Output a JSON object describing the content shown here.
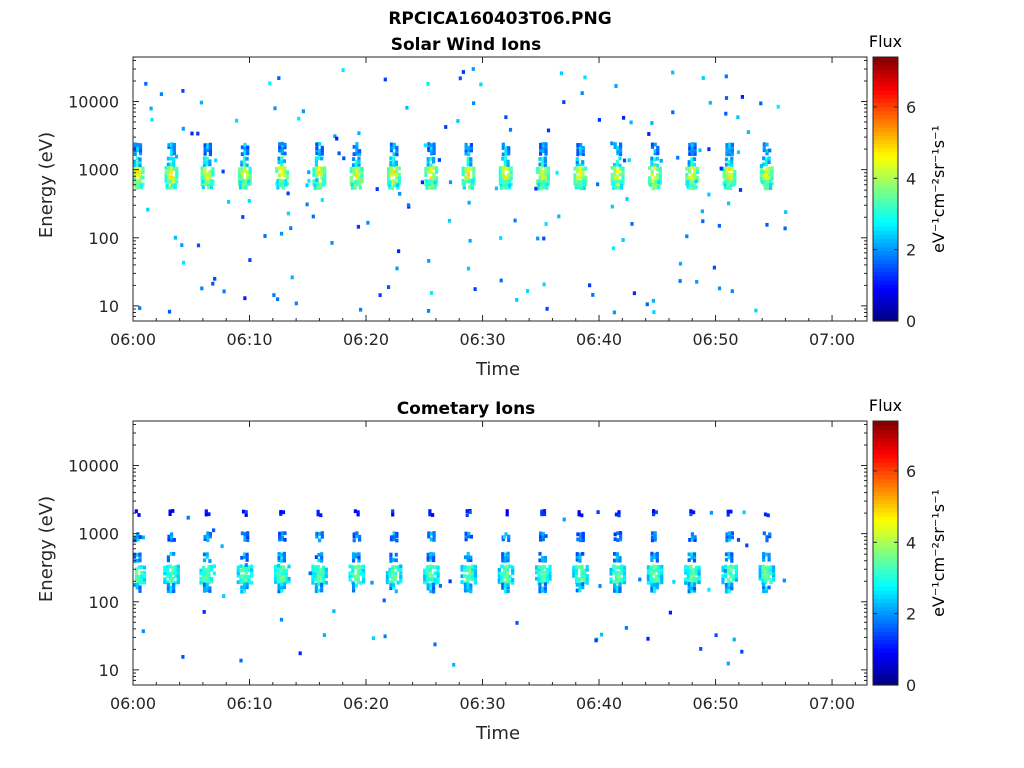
{
  "figure_title": "RPCICA160403T06.PNG",
  "colors": {
    "colormap": "jet",
    "axis": "#262626"
  },
  "chart_data": [
    {
      "type": "heatmap",
      "title": "Solar Wind Ions",
      "xlabel": "Time",
      "ylabel": "Energy (eV)",
      "x_ticks": [
        "06:00",
        "06:10",
        "06:20",
        "06:30",
        "06:40",
        "06:50",
        "07:00"
      ],
      "x_range_minutes": [
        0,
        63
      ],
      "y_scale": "log",
      "y_ticks": [
        "10",
        "100",
        "1000",
        "10000"
      ],
      "y_range": [
        6,
        45000
      ],
      "colorbar": {
        "label": "Flux",
        "unit_label": "eV⁻¹cm⁻²sr⁻¹s⁻¹",
        "ticks": [
          "0",
          "2",
          "4",
          "6"
        ],
        "range": [
          0,
          7.4
        ]
      },
      "sweep_minutes": [
        0.4,
        3.3,
        6.4,
        9.6,
        12.8,
        16.0,
        19.2,
        22.4,
        25.6,
        28.8,
        32.0,
        35.2,
        38.4,
        41.6,
        44.8,
        48.0,
        51.2,
        54.4
      ],
      "data_end_minute": 56,
      "bands": [
        {
          "energy": 2000,
          "flux": 2.2,
          "half_width_min": 0.35,
          "bins": 4
        },
        {
          "energy": 1300,
          "flux": 2.8,
          "half_width_min": 0.4,
          "bins": 3
        },
        {
          "energy": 800,
          "flux": 4.3,
          "half_width_min": 0.6,
          "bins": 6
        },
        {
          "energy": 600,
          "flux": 3.6,
          "half_width_min": 0.5,
          "bins": 3
        }
      ],
      "scatter_points": 170,
      "scatter_energy_range": [
        8,
        30000
      ]
    },
    {
      "type": "heatmap",
      "title": "Cometary Ions",
      "xlabel": "Time",
      "ylabel": "Energy (eV)",
      "x_ticks": [
        "06:00",
        "06:10",
        "06:20",
        "06:30",
        "06:40",
        "06:50",
        "07:00"
      ],
      "x_range_minutes": [
        0,
        63
      ],
      "y_scale": "log",
      "y_ticks": [
        "10",
        "100",
        "1000",
        "10000"
      ],
      "y_range": [
        6,
        45000
      ],
      "colorbar": {
        "label": "Flux",
        "unit_label": "eV⁻¹cm⁻²sr⁻¹s⁻¹",
        "ticks": [
          "0",
          "2",
          "4",
          "6"
        ],
        "range": [
          0,
          7.4
        ]
      },
      "sweep_minutes": [
        0.4,
        3.3,
        6.4,
        9.6,
        12.8,
        16.0,
        19.2,
        22.4,
        25.6,
        28.8,
        32.0,
        35.2,
        38.4,
        41.6,
        44.8,
        48.0,
        51.2,
        54.4
      ],
      "data_end_minute": 56,
      "bands": [
        {
          "energy": 2000,
          "flux": 1.3,
          "half_width_min": 0.25,
          "bins": 2
        },
        {
          "energy": 900,
          "flux": 2.0,
          "half_width_min": 0.35,
          "bins": 3
        },
        {
          "energy": 450,
          "flux": 2.2,
          "half_width_min": 0.4,
          "bins": 3
        },
        {
          "energy": 250,
          "flux": 3.4,
          "half_width_min": 0.7,
          "bins": 6
        },
        {
          "energy": 160,
          "flux": 2.4,
          "half_width_min": 0.4,
          "bins": 3
        }
      ],
      "scatter_points": 50,
      "scatter_energy_range": [
        10,
        3500
      ]
    }
  ]
}
